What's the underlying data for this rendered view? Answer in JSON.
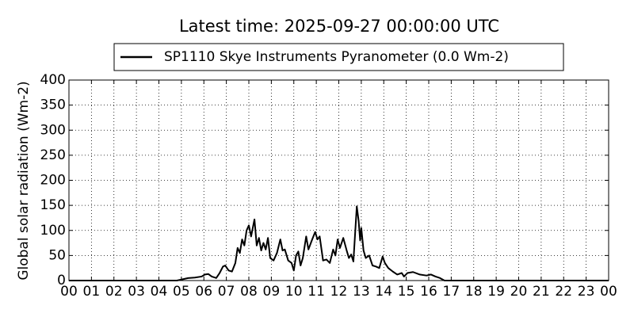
{
  "chart_data": {
    "type": "line",
    "title": "Latest time: 2025-09-27 00:00:00 UTC",
    "ylabel": "Global solar radiation (Wm-2)",
    "x": [
      0,
      4.8,
      5.0,
      5.3,
      5.6,
      5.9,
      6.05,
      6.2,
      6.35,
      6.55,
      6.7,
      6.85,
      6.95,
      7.1,
      7.25,
      7.4,
      7.5,
      7.6,
      7.7,
      7.8,
      7.9,
      8.0,
      8.1,
      8.25,
      8.35,
      8.45,
      8.55,
      8.65,
      8.75,
      8.85,
      8.95,
      9.1,
      9.25,
      9.4,
      9.5,
      9.6,
      9.75,
      9.9,
      10.0,
      10.1,
      10.2,
      10.3,
      10.4,
      10.55,
      10.65,
      10.8,
      10.95,
      11.05,
      11.15,
      11.3,
      11.45,
      11.6,
      11.75,
      11.85,
      11.95,
      12.05,
      12.2,
      12.35,
      12.45,
      12.55,
      12.65,
      12.8,
      12.88,
      12.95,
      13.0,
      13.1,
      13.2,
      13.35,
      13.5,
      13.65,
      13.8,
      13.95,
      14.05,
      14.2,
      14.4,
      14.6,
      14.8,
      14.9,
      15.05,
      15.3,
      15.6,
      15.9,
      16.1,
      16.3,
      16.5,
      16.7,
      24
    ],
    "series": [
      {
        "name": "SP1110 Skye Instruments Pyranometer (0.0 Wm-2)",
        "color": "#000000",
        "values": [
          0,
          0,
          2,
          5,
          6,
          8,
          12,
          13,
          8,
          5,
          15,
          28,
          30,
          20,
          18,
          35,
          65,
          55,
          82,
          70,
          100,
          110,
          88,
          122,
          70,
          85,
          60,
          75,
          62,
          85,
          45,
          40,
          55,
          82,
          60,
          62,
          40,
          35,
          20,
          50,
          58,
          30,
          45,
          88,
          62,
          80,
          97,
          82,
          88,
          40,
          42,
          35,
          62,
          50,
          82,
          65,
          85,
          60,
          45,
          52,
          38,
          148,
          120,
          80,
          105,
          60,
          45,
          50,
          30,
          28,
          25,
          48,
          35,
          25,
          18,
          12,
          15,
          8,
          15,
          17,
          12,
          10,
          12,
          8,
          5,
          0,
          0
        ]
      }
    ],
    "xlim": [
      0,
      24
    ],
    "xticks": [
      {
        "value": 0,
        "label": "00"
      },
      {
        "value": 1,
        "label": "01"
      },
      {
        "value": 2,
        "label": "02"
      },
      {
        "value": 3,
        "label": "03"
      },
      {
        "value": 4,
        "label": "04"
      },
      {
        "value": 5,
        "label": "05"
      },
      {
        "value": 6,
        "label": "06"
      },
      {
        "value": 7,
        "label": "07"
      },
      {
        "value": 8,
        "label": "08"
      },
      {
        "value": 9,
        "label": "09"
      },
      10,
      11,
      12,
      13,
      14,
      15,
      16,
      17,
      18,
      19,
      20,
      21,
      22,
      23,
      {
        "value": 24,
        "label": "00"
      }
    ],
    "ylim": [
      0,
      400
    ],
    "yticks": [
      0,
      50,
      100,
      150,
      200,
      250,
      300,
      350,
      400
    ],
    "grid": true,
    "legend": "top"
  }
}
